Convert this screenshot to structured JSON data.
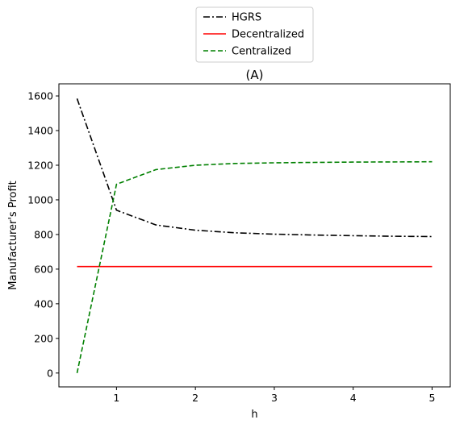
{
  "chart_data": {
    "type": "line",
    "title": "(A)",
    "xlabel": "h",
    "ylabel": "Manufacturer's Profit",
    "xlim": [
      0.27,
      5.23
    ],
    "ylim": [
      -80,
      1670
    ],
    "xticks": [
      1,
      2,
      3,
      4,
      5
    ],
    "yticks": [
      0,
      200,
      400,
      600,
      800,
      1000,
      1200,
      1400,
      1600
    ],
    "grid": false,
    "legend_position": "top-center, outside plot",
    "series": [
      {
        "name": "HGRS",
        "color": "#000000",
        "style": "dash-dot",
        "x": [
          0.5,
          1.0,
          1.5,
          2.0,
          2.5,
          3.0,
          3.5,
          4.0,
          4.5,
          5.0
        ],
        "values": [
          1585,
          940,
          855,
          825,
          810,
          802,
          797,
          793,
          790,
          788
        ]
      },
      {
        "name": "Decentralized",
        "color": "#ff0000",
        "style": "solid",
        "x": [
          0.5,
          1.0,
          1.5,
          2.0,
          2.5,
          3.0,
          3.5,
          4.0,
          4.5,
          5.0
        ],
        "values": [
          615,
          615,
          615,
          615,
          615,
          615,
          615,
          615,
          615,
          615
        ]
      },
      {
        "name": "Centralized",
        "color": "#008000",
        "style": "dashed",
        "x": [
          0.5,
          1.0,
          1.5,
          2.0,
          2.5,
          3.0,
          3.5,
          4.0,
          4.5,
          5.0
        ],
        "values": [
          0,
          1090,
          1175,
          1200,
          1210,
          1214,
          1216,
          1218,
          1219,
          1220
        ]
      }
    ]
  }
}
